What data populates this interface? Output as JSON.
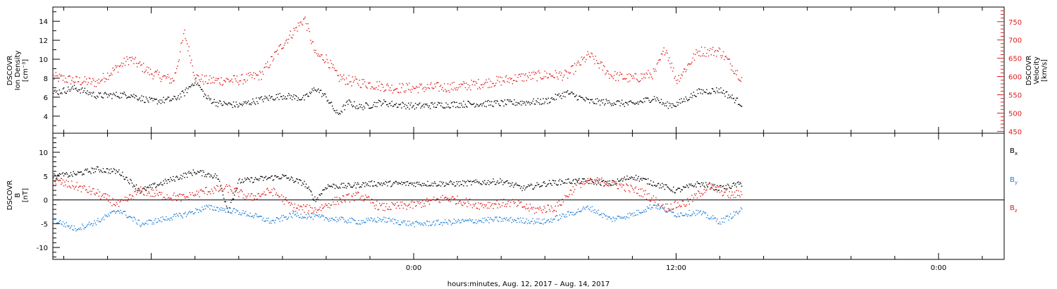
{
  "xaxis": {
    "title": "hours:minutes, Aug. 12, 2017 – Aug. 14, 2017",
    "range_hours": [
      -16.5,
      27.0
    ],
    "major_ticks_hours": [
      -12,
      0,
      12,
      24
    ],
    "tick_labels": [
      "0:00",
      "12:00",
      "0:00"
    ],
    "tick_label_hours": [
      0,
      12,
      24
    ],
    "minor_tick_step_hours": 2,
    "data_end_hours": 15.0
  },
  "panel_top": {
    "left_label": [
      "DSCOVR",
      "Ion Density",
      "[cm⁻³]"
    ],
    "right_label": [
      "DSCOVR",
      "Velocity",
      "[km/s]"
    ],
    "right_color": "#e01b1b",
    "density_color": "#000000"
  },
  "panel_bottom": {
    "left_label": [
      "DSCOVR",
      "B",
      "[nT]"
    ],
    "legend": [
      {
        "label": "B",
        "sub": "x",
        "color": "#000000"
      },
      {
        "label": "B",
        "sub": "y",
        "color": "#1f7fd6"
      },
      {
        "label": "B",
        "sub": "z",
        "color": "#e01b1b"
      }
    ]
  },
  "chart_data": [
    {
      "type": "scatter",
      "panel": "top",
      "xlabel": "",
      "ylabel": "Ion Density [cm⁻³]",
      "ylim": [
        2.2,
        15.5
      ],
      "yticks": [
        4,
        6,
        8,
        10,
        12,
        14
      ],
      "y2label": "Velocity [km/s]",
      "y2lim": [
        445,
        790
      ],
      "y2ticks": [
        450,
        500,
        550,
        600,
        650,
        700,
        750
      ],
      "grid": false,
      "series": [
        {
          "name": "Ion Density",
          "axis": "left",
          "color": "#000000",
          "x": [
            -16.5,
            -15.5,
            -14.5,
            -13.0,
            -12.0,
            -11.0,
            -10.5,
            -10.0,
            -9.5,
            -9.0,
            -8.0,
            -7.0,
            -6.0,
            -5.0,
            -4.5,
            -4.0,
            -3.5,
            -3.0,
            -2.5,
            -2.0,
            -1.5,
            -1.0,
            0.0,
            2.0,
            4.0,
            6.0,
            7.0,
            8.0,
            9.0,
            10.0,
            11.0,
            11.5,
            12.0,
            13.0,
            14.0,
            15.0
          ],
          "y": [
            6.5,
            7.0,
            6.2,
            6.3,
            5.6,
            5.8,
            6.5,
            7.8,
            6.0,
            5.4,
            5.2,
            5.8,
            6.2,
            5.9,
            7.0,
            6.0,
            4.2,
            5.5,
            5.0,
            5.2,
            5.5,
            5.3,
            5.1,
            5.3,
            5.4,
            5.6,
            6.5,
            5.6,
            5.5,
            5.3,
            6.0,
            5.2,
            5.3,
            6.6,
            6.8,
            5.3
          ]
        },
        {
          "name": "Velocity",
          "axis": "right",
          "color": "#e01b1b",
          "x": [
            -16.5,
            -15.5,
            -14.5,
            -13.0,
            -12.0,
            -11.0,
            -10.5,
            -10.0,
            -9.5,
            -9.0,
            -8.0,
            -7.0,
            -6.0,
            -5.0,
            -4.5,
            -4.0,
            -3.5,
            -3.0,
            -2.5,
            -2.0,
            -1.0,
            0.0,
            2.0,
            4.0,
            5.0,
            6.0,
            7.0,
            8.0,
            9.0,
            10.0,
            11.0,
            11.5,
            12.0,
            13.0,
            14.0,
            15.0
          ],
          "y": [
            600,
            590,
            585,
            650,
            610,
            590,
            720,
            600,
            590,
            590,
            592,
            605,
            690,
            760,
            660,
            650,
            600,
            590,
            585,
            580,
            570,
            570,
            573,
            590,
            600,
            605,
            605,
            660,
            605,
            595,
            610,
            680,
            590,
            670,
            670,
            595
          ]
        }
      ]
    },
    {
      "type": "scatter",
      "panel": "bottom",
      "xlabel": "hours:minutes, Aug. 12, 2017 – Aug. 14, 2017",
      "ylabel": "B [nT]",
      "ylim": [
        -12.5,
        14.0
      ],
      "yticks": [
        -10,
        -5,
        0,
        5,
        10
      ],
      "zero_line": true,
      "grid": false,
      "series": [
        {
          "name": "Bx",
          "color": "#000000",
          "x": [
            -16.5,
            -15.5,
            -14.5,
            -13.5,
            -12.5,
            -11.0,
            -10.0,
            -9.0,
            -8.5,
            -8.0,
            -7.0,
            -6.0,
            -5.0,
            -4.5,
            -4.0,
            -3.0,
            -2.0,
            -1.0,
            0.0,
            2.0,
            4.0,
            5.0,
            6.0,
            7.0,
            8.0,
            9.0,
            10.0,
            11.0,
            12.0,
            13.0,
            14.0,
            15.0
          ],
          "y": [
            5.0,
            5.5,
            6.5,
            6.0,
            2.0,
            4.5,
            6.0,
            5.0,
            -2.0,
            4.0,
            4.5,
            5.0,
            3.5,
            0.0,
            3.0,
            3.0,
            3.5,
            3.5,
            3.5,
            3.5,
            4.0,
            2.5,
            3.5,
            4.0,
            4.0,
            3.5,
            5.0,
            3.5,
            2.0,
            3.5,
            2.5,
            3.5
          ]
        },
        {
          "name": "By",
          "color": "#1f7fd6",
          "x": [
            -16.5,
            -15.5,
            -14.5,
            -13.5,
            -12.5,
            -11.5,
            -10.5,
            -9.5,
            -8.5,
            -7.5,
            -6.5,
            -5.5,
            -4.5,
            -3.5,
            -2.5,
            -1.5,
            0.0,
            2.0,
            4.0,
            6.0,
            7.0,
            8.0,
            9.0,
            10.0,
            11.0,
            12.0,
            13.0,
            14.0,
            15.0
          ],
          "y": [
            -4.0,
            -6.0,
            -4.5,
            -2.0,
            -5.0,
            -4.0,
            -3.0,
            -1.5,
            -2.0,
            -3.0,
            -4.5,
            -3.0,
            -3.5,
            -4.0,
            -4.5,
            -4.0,
            -5.0,
            -4.5,
            -4.0,
            -4.5,
            -3.0,
            -1.5,
            -4.0,
            -3.0,
            -1.0,
            -3.0,
            -2.5,
            -4.5,
            -2.0
          ]
        },
        {
          "name": "Bz",
          "color": "#e01b1b",
          "x": [
            -16.5,
            -15.5,
            -14.5,
            -13.5,
            -12.5,
            -11.5,
            -10.5,
            -9.5,
            -8.5,
            -7.5,
            -6.5,
            -5.5,
            -4.5,
            -3.5,
            -2.5,
            -1.5,
            0.0,
            1.5,
            3.0,
            4.5,
            5.5,
            6.5,
            7.5,
            8.5,
            9.5,
            10.5,
            11.5,
            12.5,
            13.5,
            14.5,
            15.0
          ],
          "y": [
            4.0,
            3.0,
            1.5,
            -1.0,
            2.0,
            1.0,
            0.5,
            2.0,
            2.5,
            0.5,
            2.0,
            -1.5,
            -2.0,
            0.0,
            1.0,
            -1.5,
            -1.0,
            0.5,
            -1.0,
            -0.5,
            -2.0,
            -1.5,
            3.5,
            4.0,
            3.0,
            1.5,
            -1.5,
            -0.5,
            3.0,
            1.0,
            1.5
          ]
        }
      ]
    }
  ]
}
